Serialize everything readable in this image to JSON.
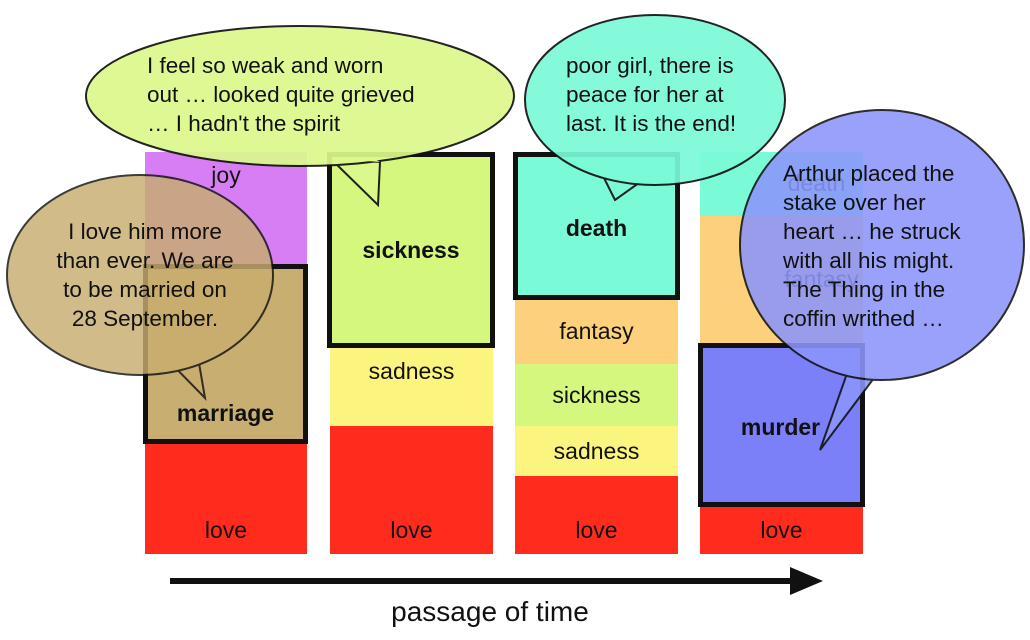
{
  "columns": [
    {
      "segments": [
        {
          "label": "joy",
          "color": "#d87ef5"
        },
        {
          "label": "love",
          "color": "#ff2c1e"
        }
      ],
      "topic": {
        "label": "marriage",
        "color": "#c9ae72"
      },
      "bubble": {
        "lines": [
          "I love him more",
          "than ever. We are",
          "to be married on",
          "28 September."
        ],
        "color": "#c8ad6e"
      }
    },
    {
      "segments": [
        {
          "label": "sadness",
          "color": "#fbf57f"
        },
        {
          "label": "love",
          "color": "#ff2c1e"
        }
      ],
      "topic": {
        "label": "sickness",
        "color": "#d6f77e"
      },
      "bubble": {
        "lines": [
          "I feel so weak and worn",
          "out … looked quite grieved",
          "… I hadn't the spirit"
        ],
        "color": "#dcf98c"
      }
    },
    {
      "segments": [
        {
          "label": "fantasy",
          "color": "#fdd17c"
        },
        {
          "label": "sickness",
          "color": "#d6f77e"
        },
        {
          "label": "sadness",
          "color": "#fbf57f"
        },
        {
          "label": "love",
          "color": "#ff2c1e"
        }
      ],
      "topic": {
        "label": "death",
        "color": "#7bfad8"
      },
      "bubble": {
        "lines": [
          "poor girl, there is",
          "peace for her at",
          "last. It is the end!"
        ],
        "color": "#7bfad8"
      }
    },
    {
      "segments": [
        {
          "label": "death",
          "color": "#7bfad8"
        },
        {
          "label": "fantasy",
          "color": "#fdd17c"
        },
        {
          "label": "love",
          "color": "#ff2c1e"
        }
      ],
      "topic": {
        "label": "murder",
        "color": "#7b7ff8"
      },
      "bubble": {
        "lines": [
          "Arthur placed the",
          "stake over her",
          "heart … he struck",
          "with all his might.",
          "The Thing in the",
          "coffin writhed …"
        ],
        "color": "#8c95fb"
      }
    }
  ],
  "axis": {
    "label": "passage of time"
  }
}
